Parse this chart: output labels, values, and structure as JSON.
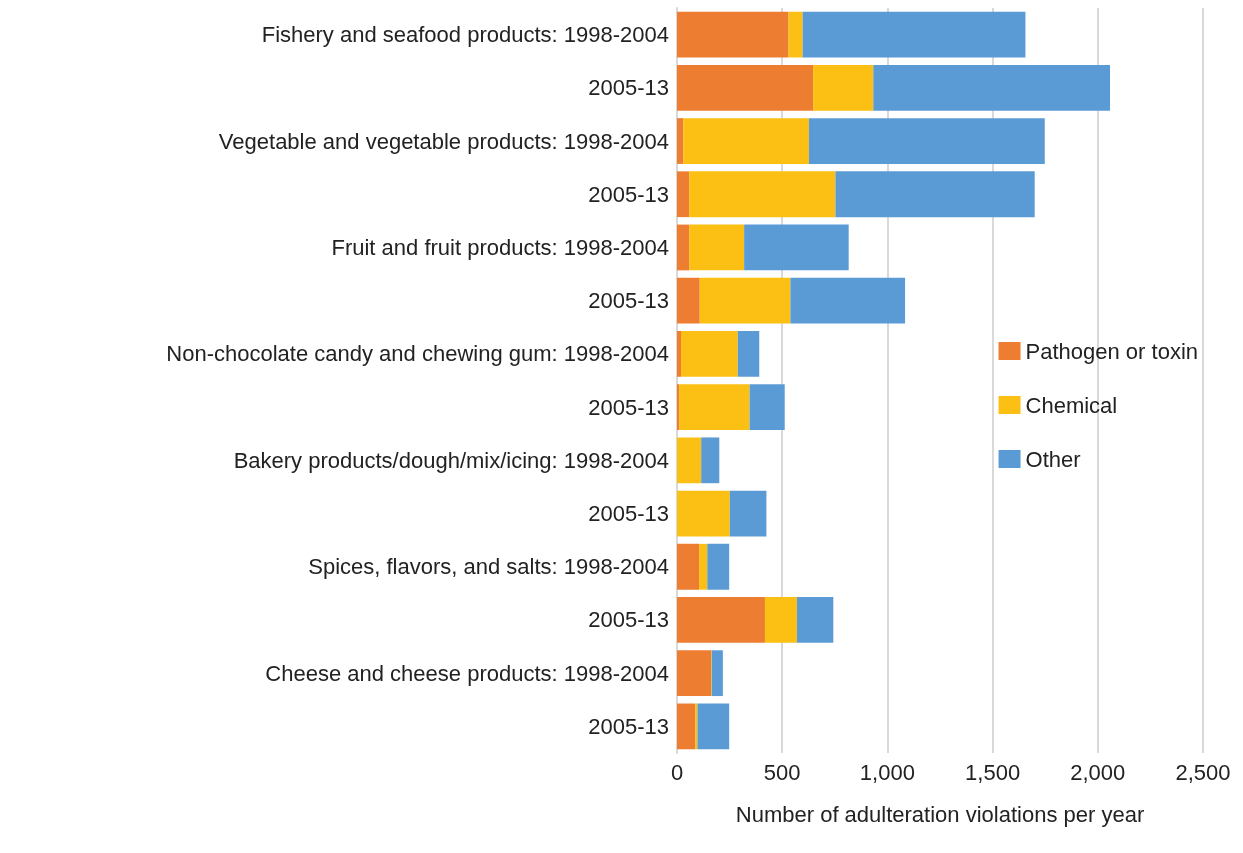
{
  "chart_data": {
    "type": "bar",
    "orientation": "horizontal",
    "stacked": true,
    "xlabel": "Number of adulteration violations per year",
    "categories": [
      "Fishery and seafood products: 1998-2004",
      "2005-13",
      "Vegetable and vegetable products: 1998-2004",
      "2005-13",
      "Fruit and fruit products: 1998-2004",
      "2005-13",
      "Non-chocolate candy and chewing gum: 1998-2004",
      "2005-13",
      "Bakery products/dough/mix/icing: 1998-2004",
      "2005-13",
      "Spices, flavors, and salts: 1998-2004",
      "2005-13",
      "Cheese and cheese products: 1998-2004",
      "2005-13"
    ],
    "series": [
      {
        "name": "Pathogen or toxin",
        "color": "#ed7d31",
        "values": [
          530,
          647,
          30,
          58,
          58,
          108,
          19,
          10,
          0,
          0,
          105,
          418,
          162,
          86
        ]
      },
      {
        "name": "Chemical",
        "color": "#fcbf14",
        "values": [
          67,
          286,
          597,
          695,
          261,
          431,
          270,
          335,
          115,
          251,
          39,
          152,
          3,
          11
        ]
      },
      {
        "name": "Other",
        "color": "#5b9bd5",
        "values": [
          1059,
          1125,
          1121,
          947,
          497,
          545,
          102,
          167,
          86,
          174,
          104,
          173,
          53,
          151
        ]
      }
    ],
    "xlim": [
      0,
      2500
    ],
    "xticks": [
      0,
      500,
      {
        "value": 1000,
        "label": "1,000"
      },
      {
        "value": 1500,
        "label": "1,500"
      },
      {
        "value": 2000,
        "label": "2,000"
      },
      {
        "value": 2500,
        "label": "2,500"
      }
    ],
    "grid": "x",
    "legend": "right"
  }
}
